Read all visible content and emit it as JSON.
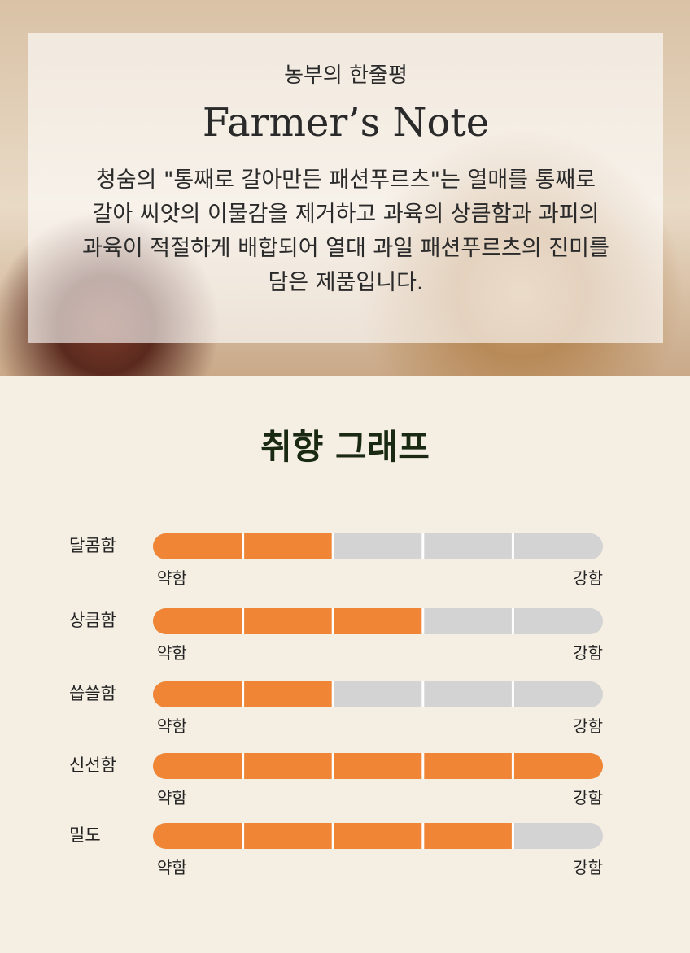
{
  "note": {
    "subtitle": "농부의 한줄평",
    "title": "Farmer’s Note",
    "text": [
      "청숨의 \"통째로 갈아만든 패션푸르츠\"는 열매를 통째로",
      "갈아 씨앗의 이물감을 제거하고 과육의 상큼함과 과피의",
      "과육이 적절하게 배합되어 열대 과일 패션푸르츠의 진미를",
      "담은 제품입니다."
    ]
  },
  "graph": {
    "title": "취향 그래프",
    "low_label": "약함",
    "high_label": "강함",
    "rows": [
      {
        "label": "달콤함",
        "value": 2
      },
      {
        "label": "상큼함",
        "value": 3
      },
      {
        "label": "씁쓸함",
        "value": 2
      },
      {
        "label": "신선함",
        "value": 5
      },
      {
        "label": "밀도",
        "value": 4
      }
    ]
  }
}
